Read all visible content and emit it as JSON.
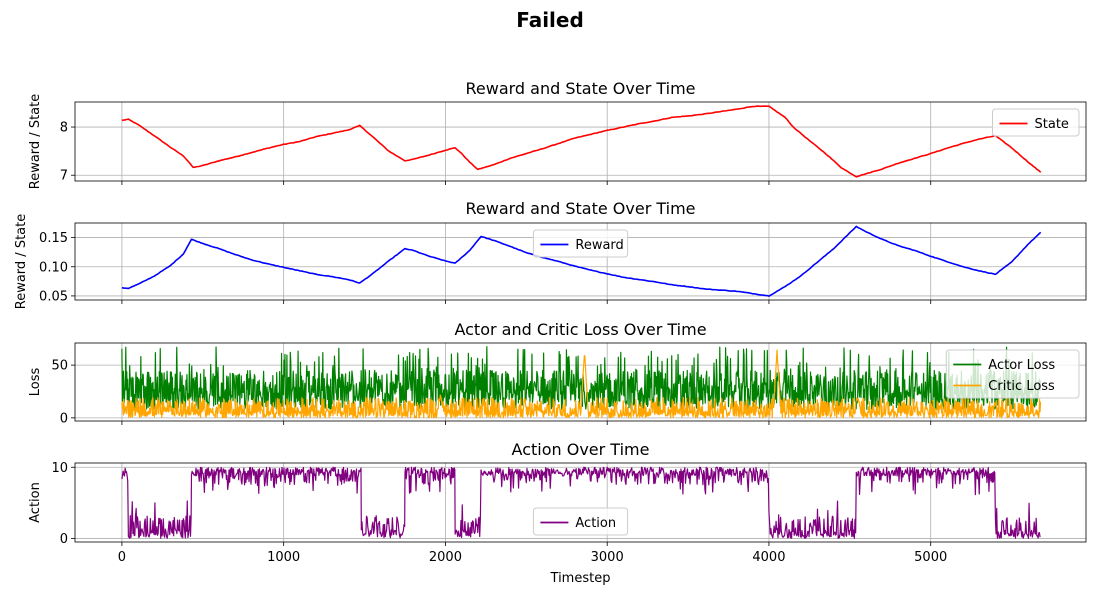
{
  "figure": {
    "suptitle": "Failed"
  },
  "chart_data": [
    {
      "type": "line",
      "title": "Reward and State Over Time",
      "xlabel": "",
      "ylabel": "Reward / State",
      "xlim": [
        -290,
        5960
      ],
      "ylim": [
        6.88,
        8.52
      ],
      "yticks": [
        7,
        8
      ],
      "grid": true,
      "legend_position": "upper right",
      "series": [
        {
          "name": "State",
          "color": "#ff0000",
          "x": [
            0,
            40,
            100,
            200,
            300,
            380,
            420,
            440,
            500,
            600,
            700,
            800,
            900,
            1000,
            1100,
            1200,
            1300,
            1400,
            1470,
            1550,
            1650,
            1750,
            1800,
            1900,
            2000,
            2060,
            2100,
            2150,
            2200,
            2230,
            2300,
            2400,
            2500,
            2600,
            2700,
            2800,
            2900,
            3000,
            3100,
            3200,
            3300,
            3400,
            3500,
            3600,
            3700,
            3800,
            3900,
            4000,
            4100,
            4150,
            4250,
            4350,
            4450,
            4540,
            4600,
            4700,
            4800,
            4900,
            5000,
            5100,
            5200,
            5300,
            5400,
            5500,
            5600,
            5680
          ],
          "y": [
            8.14,
            8.16,
            8.05,
            7.82,
            7.58,
            7.4,
            7.25,
            7.16,
            7.2,
            7.3,
            7.38,
            7.47,
            7.56,
            7.64,
            7.7,
            7.8,
            7.87,
            7.94,
            8.03,
            7.8,
            7.5,
            7.3,
            7.33,
            7.42,
            7.52,
            7.57,
            7.45,
            7.27,
            7.12,
            7.15,
            7.22,
            7.35,
            7.45,
            7.55,
            7.66,
            7.77,
            7.85,
            7.93,
            8.0,
            8.07,
            8.13,
            8.2,
            8.23,
            8.27,
            8.32,
            8.37,
            8.43,
            8.43,
            8.2,
            8.0,
            7.72,
            7.45,
            7.15,
            6.97,
            7.03,
            7.13,
            7.25,
            7.35,
            7.45,
            7.56,
            7.66,
            7.75,
            7.82,
            7.57,
            7.28,
            7.06
          ]
        }
      ]
    },
    {
      "type": "line",
      "title": "Reward and State Over Time",
      "xlabel": "",
      "ylabel": "Reward / State",
      "xlim": [
        -290,
        5960
      ],
      "ylim": [
        0.043,
        0.175
      ],
      "yticks": [
        0.05,
        0.1,
        0.15
      ],
      "ytick_labels": [
        "0.05",
        "0.10",
        "0.15"
      ],
      "grid": true,
      "legend_position": "upper center",
      "series": [
        {
          "name": "Reward",
          "color": "#0000ff",
          "x": [
            0,
            40,
            100,
            200,
            300,
            380,
            430,
            500,
            600,
            700,
            800,
            900,
            1000,
            1100,
            1200,
            1300,
            1400,
            1470,
            1550,
            1650,
            1750,
            1800,
            1900,
            2000,
            2060,
            2150,
            2220,
            2300,
            2400,
            2500,
            2600,
            2700,
            2800,
            2900,
            3000,
            3100,
            3200,
            3300,
            3400,
            3500,
            3600,
            3700,
            3800,
            3900,
            4000,
            4100,
            4200,
            4300,
            4400,
            4540,
            4600,
            4700,
            4800,
            4900,
            5000,
            5100,
            5200,
            5300,
            5400,
            5500,
            5600,
            5680
          ],
          "y": [
            0.064,
            0.063,
            0.07,
            0.084,
            0.102,
            0.122,
            0.147,
            0.14,
            0.131,
            0.121,
            0.112,
            0.105,
            0.099,
            0.093,
            0.087,
            0.083,
            0.078,
            0.072,
            0.088,
            0.11,
            0.131,
            0.128,
            0.118,
            0.11,
            0.106,
            0.128,
            0.152,
            0.145,
            0.135,
            0.124,
            0.116,
            0.109,
            0.101,
            0.094,
            0.088,
            0.082,
            0.078,
            0.074,
            0.069,
            0.066,
            0.062,
            0.06,
            0.058,
            0.054,
            0.05,
            0.066,
            0.085,
            0.108,
            0.131,
            0.169,
            0.16,
            0.147,
            0.136,
            0.128,
            0.118,
            0.109,
            0.1,
            0.093,
            0.087,
            0.108,
            0.138,
            0.159
          ]
        }
      ]
    },
    {
      "type": "line",
      "title": "Actor and Critic Loss Over Time",
      "xlabel": "",
      "ylabel": "Loss",
      "xlim": [
        -290,
        5960
      ],
      "ylim": [
        -3,
        71
      ],
      "yticks": [
        0,
        50
      ],
      "grid": true,
      "legend_position": "upper right",
      "series": [
        {
          "name": "Actor Loss",
          "color": "#008000",
          "x_range": [
            0,
            5680
          ],
          "band_low": 8,
          "band_mid": 25,
          "band_high": 45,
          "peak_max": 68
        },
        {
          "name": "Critic Loss",
          "color": "#ffa500",
          "x_range": [
            0,
            5680
          ],
          "band_low": 0,
          "band_mid": 6,
          "band_high": 16,
          "spikes": [
            {
              "x": 2860,
              "y": 63
            },
            {
              "x": 4050,
              "y": 64
            },
            {
              "x": 1970,
              "y": 22
            },
            {
              "x": 4550,
              "y": 20
            }
          ]
        }
      ]
    },
    {
      "type": "line",
      "title": "Action Over Time",
      "xlabel": "Timestep",
      "ylabel": "Action",
      "xlim": [
        -290,
        5960
      ],
      "ylim": [
        -0.5,
        10.6
      ],
      "yticks": [
        0,
        10
      ],
      "xticks": [
        0,
        1000,
        2000,
        3000,
        4000,
        5000
      ],
      "grid": true,
      "legend_position": "lower center",
      "series": [
        {
          "name": "Action",
          "color": "#800080",
          "x_range": [
            0,
            5680
          ],
          "regimes": [
            {
              "x0": 0,
              "x1": 40,
              "level": "high"
            },
            {
              "x0": 40,
              "x1": 430,
              "level": "low"
            },
            {
              "x0": 430,
              "x1": 1480,
              "level": "high"
            },
            {
              "x0": 1480,
              "x1": 1750,
              "level": "low"
            },
            {
              "x0": 1750,
              "x1": 2060,
              "level": "high"
            },
            {
              "x0": 2060,
              "x1": 2220,
              "level": "low"
            },
            {
              "x0": 2220,
              "x1": 4000,
              "level": "high"
            },
            {
              "x0": 4000,
              "x1": 4540,
              "level": "low"
            },
            {
              "x0": 4540,
              "x1": 5400,
              "level": "high"
            },
            {
              "x0": 5400,
              "x1": 5680,
              "level": "low"
            }
          ]
        }
      ]
    }
  ]
}
